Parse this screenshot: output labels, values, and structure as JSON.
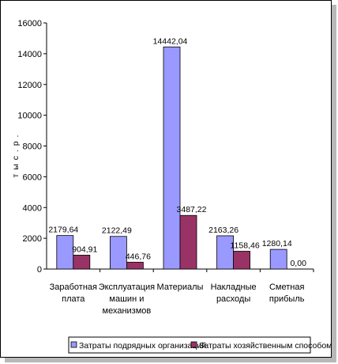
{
  "chart_data": {
    "type": "bar",
    "ylabel": "т ы с . р .",
    "ylim": [
      0,
      16000
    ],
    "yticks": [
      0,
      2000,
      4000,
      6000,
      8000,
      10000,
      12000,
      14000,
      16000
    ],
    "categories": [
      [
        "Заработная",
        "плата"
      ],
      [
        "Эксплуатация",
        "машин и",
        "механизмов"
      ],
      [
        "Материалы"
      ],
      [
        "Накладные",
        "расходы"
      ],
      [
        "Сметная",
        "прибыль"
      ]
    ],
    "series": [
      {
        "name": "Затраты подрядных организаций",
        "color": "#9999ff",
        "values": [
          2179.64,
          2122.49,
          14442.04,
          2163.26,
          1280.14
        ],
        "labels": [
          "2179,64",
          "2122,49",
          "14442,04",
          "2163,26",
          "1280,14"
        ]
      },
      {
        "name": "Затраты хозяйственным способом",
        "color": "#993366",
        "values": [
          904.91,
          446.76,
          3487.22,
          1158.46,
          0.0
        ],
        "labels": [
          "904,91",
          "446,76",
          "3487,22",
          "1158,46",
          "0,00"
        ]
      }
    ],
    "legend": "bottom",
    "grid": false
  }
}
